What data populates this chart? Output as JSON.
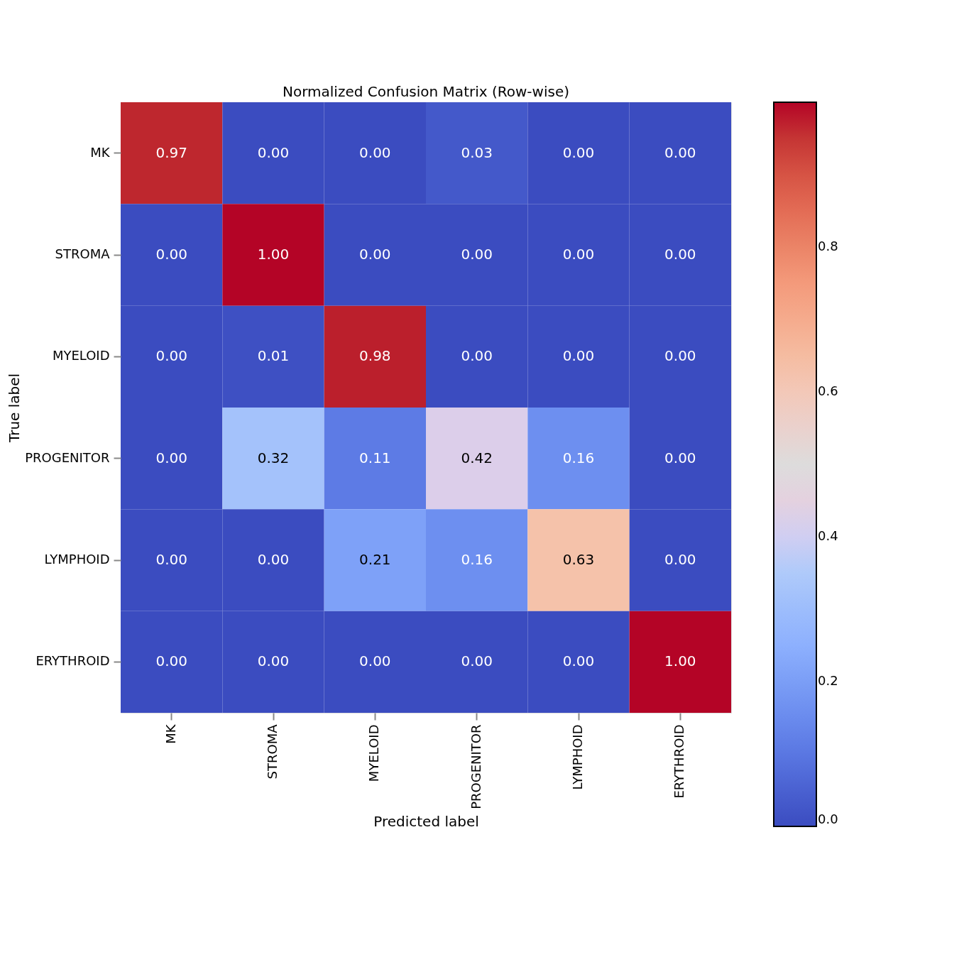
{
  "chart_data": {
    "type": "heatmap",
    "title": "Normalized Confusion Matrix (Row-wise)",
    "xlabel": "Predicted label",
    "ylabel": "True label",
    "categories": [
      "MK",
      "STROMA",
      "MYELOID",
      "PROGENITOR",
      "LYMPHOID",
      "ERYTHROID"
    ],
    "y_categories": [
      "MK",
      "STROMA",
      "MYELOID",
      "PROGENITOR",
      "LYMPHOID",
      "ERYTHROID"
    ],
    "cells": [
      [
        0.97,
        0.0,
        0.0,
        0.03,
        0.0,
        0.0
      ],
      [
        0.0,
        1.0,
        0.0,
        0.0,
        0.0,
        0.0
      ],
      [
        0.0,
        0.01,
        0.98,
        0.0,
        0.0,
        0.0
      ],
      [
        0.0,
        0.32,
        0.11,
        0.42,
        0.16,
        0.0
      ],
      [
        0.0,
        0.0,
        0.21,
        0.16,
        0.63,
        0.0
      ],
      [
        0.0,
        0.0,
        0.0,
        0.0,
        0.0,
        1.0
      ]
    ],
    "cell_labels": [
      [
        "0.97",
        "0.00",
        "0.00",
        "0.03",
        "0.00",
        "0.00"
      ],
      [
        "0.00",
        "1.00",
        "0.00",
        "0.00",
        "0.00",
        "0.00"
      ],
      [
        "0.00",
        "0.01",
        "0.98",
        "0.00",
        "0.00",
        "0.00"
      ],
      [
        "0.00",
        "0.32",
        "0.11",
        "0.42",
        "0.16",
        "0.00"
      ],
      [
        "0.00",
        "0.00",
        "0.21",
        "0.16",
        "0.63",
        "0.00"
      ],
      [
        "0.00",
        "0.00",
        "0.00",
        "0.00",
        "0.00",
        "1.00"
      ]
    ],
    "clim": [
      0,
      1.0
    ],
    "cticks": [
      {
        "value": 0,
        "label": "0.0"
      },
      {
        "value": 0.2,
        "label": "0.2"
      },
      {
        "value": 0.4,
        "label": "0.4"
      },
      {
        "value": 0.6,
        "label": "0.6"
      },
      {
        "value": 0.8,
        "label": "0.8"
      }
    ]
  }
}
